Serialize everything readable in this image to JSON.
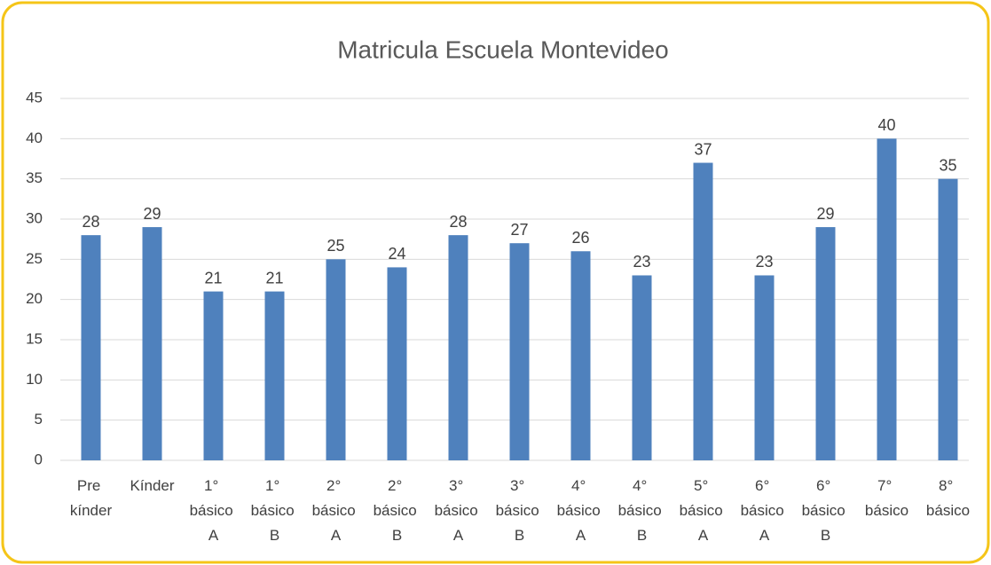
{
  "chart_data": {
    "type": "bar",
    "title": "Matricula Escuela Montevideo",
    "categories": [
      "Pre kínder",
      "Kínder",
      "1° básico A",
      "1° básico B",
      "2° básico A",
      "2° básico B",
      "3° básico A",
      "3° básico B",
      "4° básico A",
      "4° básico B",
      "5° básico A",
      "6° básico A",
      "6° básico B",
      "7° básico",
      "8° básico"
    ],
    "values": [
      28,
      29,
      21,
      21,
      25,
      24,
      28,
      27,
      26,
      23,
      37,
      23,
      29,
      40,
      35
    ],
    "color": "#4f81bd",
    "ylim": [
      0,
      45
    ],
    "yticks": [
      0,
      5,
      10,
      15,
      20,
      25,
      30,
      35,
      40,
      45
    ],
    "grid": true
  }
}
